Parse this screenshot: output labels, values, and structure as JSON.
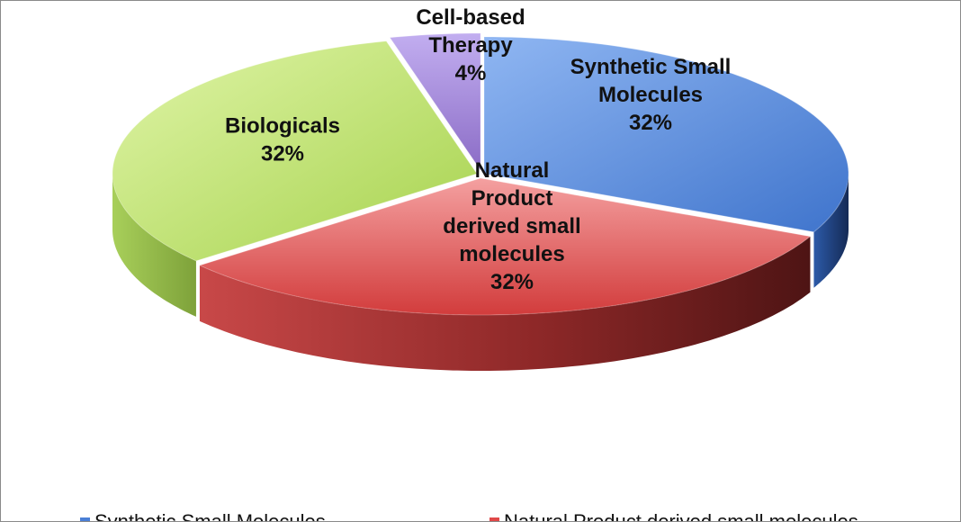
{
  "chart_data": {
    "type": "pie",
    "style": "3d-exploded",
    "title": "",
    "slices": [
      {
        "name": "Synthetic Small Molecules",
        "label_lines": [
          "Synthetic Small",
          "Molecules"
        ],
        "value": 32,
        "pct_label": "32%",
        "color": "#5b8fe0",
        "side_color": "#223f7a"
      },
      {
        "name": "Natural Product derived small molecules",
        "label_lines": [
          "Natural",
          "Product",
          "derived small",
          "molecules"
        ],
        "value": 32,
        "pct_label": "32%",
        "color": "#e05050",
        "side_color": "#8a2424"
      },
      {
        "name": "Biologicals",
        "label_lines": [
          "Biologicals"
        ],
        "value": 32,
        "pct_label": "32%",
        "color": "#b3de5e",
        "side_color": "#86ad3d"
      },
      {
        "name": "Cell-based Therapy",
        "label_lines": [
          "Cell-based",
          "Therapy"
        ],
        "value": 4,
        "pct_label": "4%",
        "color": "#9a7fd0",
        "side_color": "#5d4a8c"
      }
    ],
    "legend": {
      "placement": "bottom",
      "entries": [
        {
          "label": "Synthetic Small Molecules",
          "color": "#4a7fd6"
        },
        {
          "label": "Natural Product derived small molecules",
          "color": "#e04848"
        }
      ]
    }
  }
}
